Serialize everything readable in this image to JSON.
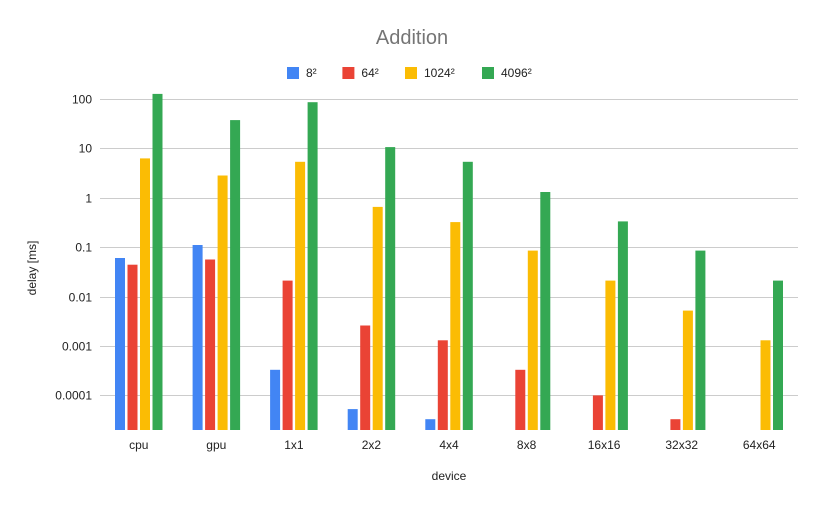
{
  "chart_data": {
    "type": "bar",
    "title": "Addition",
    "xlabel": "device",
    "ylabel": "delay [ms]",
    "yscale": "log",
    "ylim": [
      2e-05,
      150
    ],
    "yticks": [
      0.0001,
      0.001,
      0.01,
      0.1,
      1,
      10,
      100
    ],
    "ytick_labels": [
      "0.0001",
      "0.001",
      "0.01",
      "0.1",
      "1",
      "10",
      "100"
    ],
    "grid": true,
    "legend_position": "top",
    "categories": [
      "cpu",
      "gpu",
      "1x1",
      "2x2",
      "4x4",
      "8x8",
      "16x16",
      "32x32",
      "64x64"
    ],
    "series": [
      {
        "name": "8²",
        "color": "#4285f4",
        "values": [
          0.06,
          0.11,
          0.00033,
          5.3e-05,
          3.3e-05,
          null,
          null,
          null,
          null
        ]
      },
      {
        "name": "64²",
        "color": "#ea4335",
        "values": [
          0.044,
          0.056,
          0.021,
          0.0026,
          0.0013,
          0.00033,
          0.0001,
          3.3e-05,
          null
        ]
      },
      {
        "name": "1024²",
        "color": "#fbbc04",
        "values": [
          6.2,
          2.8,
          5.3,
          0.65,
          0.32,
          0.085,
          0.021,
          0.0052,
          0.0013
        ]
      },
      {
        "name": "4096²",
        "color": "#34a853",
        "values": [
          125,
          37,
          85,
          10.5,
          5.3,
          1.3,
          0.33,
          0.085,
          0.021
        ]
      }
    ]
  }
}
